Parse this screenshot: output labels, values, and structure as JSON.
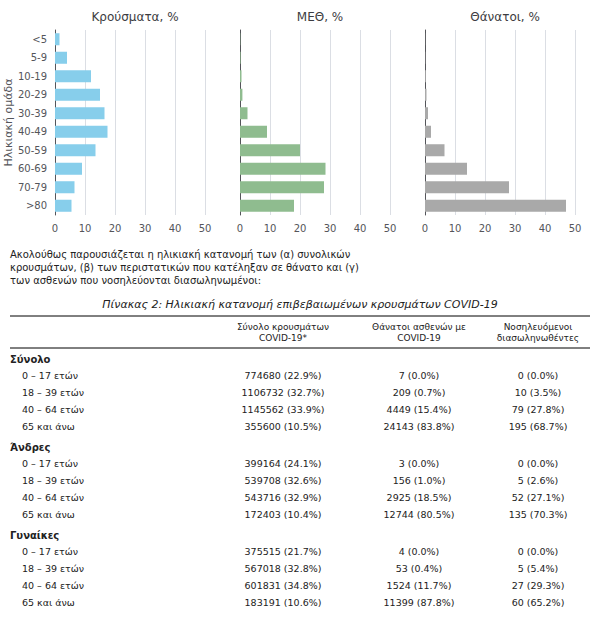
{
  "chart_data": [
    {
      "type": "bar",
      "orientation": "horizontal",
      "title": "Κρούσματα, %",
      "ylabel": "Ηλικιακή ομάδα",
      "categories": [
        ">80",
        "70-79",
        "60-69",
        "50-59",
        "40-49",
        "30-39",
        "20-29",
        "10-19",
        "5-9",
        "<5"
      ],
      "values": [
        5.5,
        6.5,
        9.0,
        13.5,
        17.5,
        16.5,
        15.0,
        12.0,
        4.0,
        1.5
      ],
      "color": "#87CEEB",
      "xlim": [
        0,
        50
      ],
      "xticks": [
        0,
        10,
        20,
        30,
        40,
        50
      ],
      "grid": true
    },
    {
      "type": "bar",
      "orientation": "horizontal",
      "title": "ΜΕΘ, %",
      "categories": [
        ">80",
        "70-79",
        "60-69",
        "50-59",
        "40-49",
        "30-39",
        "20-29",
        "10-19",
        "5-9",
        "<5"
      ],
      "values": [
        18.0,
        28.0,
        28.5,
        20.0,
        9.0,
        2.5,
        0.8,
        0.5,
        0.2,
        0.1
      ],
      "color": "#8FBC8F",
      "xlim": [
        0,
        50
      ],
      "xticks": [
        0,
        10,
        20,
        30,
        40,
        50
      ],
      "grid": true,
      "tick_labels": "x"
    },
    {
      "type": "bar",
      "orientation": "horizontal",
      "title": "Θάνατοι, %",
      "categories": [
        ">80",
        "70-79",
        "60-69",
        "50-59",
        "40-49",
        "30-39",
        "20-29",
        "10-19",
        "5-9",
        "<5"
      ],
      "values": [
        47.0,
        28.0,
        14.0,
        6.5,
        2.0,
        1.0,
        0.5,
        0.3,
        0.1,
        0.05
      ],
      "color": "#A9A9A9",
      "xlim": [
        0,
        50
      ],
      "xticks": [
        0,
        10,
        20,
        30,
        40,
        50
      ],
      "grid": true,
      "tick_labels": "x"
    }
  ],
  "annotations": [
    "Ακολούθως παρουσιάζεται η ηλικιακή κατανομή των (α) συνολικών κρουσμάτων, (β) των περιστατικών που κατέληξαν σε θάνατο και (γ) των ασθενών που νοσηλεύονται διασωληνωμένοι:"
  ],
  "table": {
    "title": "Πίνακας 2: Ηλικιακή κατανομή επιβεβαιωμένων κρουσμάτων COVID-19",
    "columns": [
      "Σύνολο κρουσμάτων\nCOVID-19*",
      "Θάνατοι ασθενών με\nCOVID-19",
      "Νοσηλευόμενοι\nδιασωληνωθέντες"
    ],
    "sections": [
      {
        "label": "Σύνολο",
        "rows": [
          {
            "label": "0 – 17 ετών",
            "cells": [
              "774680 (22.9%)",
              "7 (0.0%)",
              "0 (0.0%)"
            ]
          },
          {
            "label": "18 – 39 ετών",
            "cells": [
              "1106732 (32.7%)",
              "209 (0.7%)",
              "10 (3.5%)"
            ]
          },
          {
            "label": "40 – 64 ετών",
            "cells": [
              "1145562 (33.9%)",
              "4449 (15.4%)",
              "79 (27.8%)"
            ]
          },
          {
            "label": "65 και άνω",
            "cells": [
              "355600 (10.5%)",
              "24143 (83.8%)",
              "195 (68.7%)"
            ]
          }
        ]
      },
      {
        "label": "Άνδρες",
        "rows": [
          {
            "label": "0 – 17 ετών",
            "cells": [
              "399164 (24.1%)",
              "3 (0.0%)",
              "0 (0.0%)"
            ]
          },
          {
            "label": "18 – 39 ετών",
            "cells": [
              "539708 (32.6%)",
              "156 (1.0%)",
              "5 (2.6%)"
            ]
          },
          {
            "label": "40 – 64 ετών",
            "cells": [
              "543716 (32.9%)",
              "2925 (18.5%)",
              "52 (27.1%)"
            ]
          },
          {
            "label": "65 και άνω",
            "cells": [
              "172403 (10.4%)",
              "12744 (80.5%)",
              "135 (70.3%)"
            ]
          }
        ]
      },
      {
        "label": "Γυναίκες",
        "rows": [
          {
            "label": "0 – 17 ετών",
            "cells": [
              "375515 (21.7%)",
              "4 (0.0%)",
              "0 (0.0%)"
            ]
          },
          {
            "label": "18 – 39 ετών",
            "cells": [
              "567018 (32.8%)",
              "53 (0.4%)",
              "5 (5.4%)"
            ]
          },
          {
            "label": "40 – 64 ετών",
            "cells": [
              "601831 (34.8%)",
              "1524 (11.7%)",
              "27 (29.3%)"
            ]
          },
          {
            "label": "65 και άνω",
            "cells": [
              "183191 (10.6%)",
              "11399 (87.8%)",
              "60 (65.2%)"
            ]
          }
        ]
      }
    ]
  }
}
